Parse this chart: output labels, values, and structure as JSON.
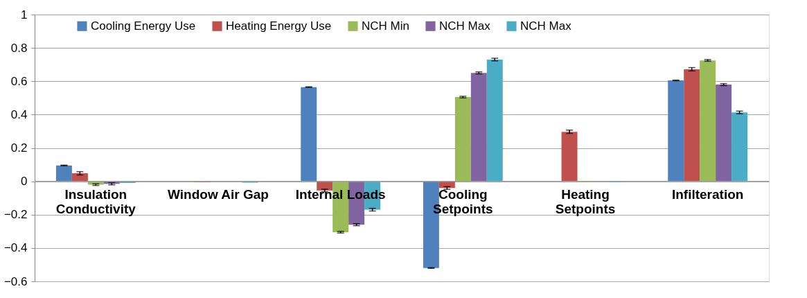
{
  "chart_data": {
    "type": "bar",
    "categories": [
      "Insulation Conductivity",
      "Window Air Gap",
      "Internal Loads",
      "Cooling Setpoints",
      "Heating Setpoints",
      "Infilteration"
    ],
    "series": [
      {
        "name": "Cooling Energy Use",
        "color": "#4f81bd",
        "values": [
          0.095,
          0.0,
          0.565,
          -0.52,
          0.0,
          0.605
        ],
        "errors": [
          0.002,
          null,
          0.002,
          0.002,
          null,
          0.002
        ]
      },
      {
        "name": "Heating Energy Use",
        "color": "#c0504d",
        "values": [
          0.048,
          -0.005,
          -0.055,
          -0.04,
          0.297,
          0.672
        ],
        "errors": [
          0.01,
          null,
          0.008,
          0.008,
          0.01,
          0.01
        ]
      },
      {
        "name": "NCH Min",
        "color": "#9bbb59",
        "values": [
          -0.02,
          null,
          -0.305,
          0.505,
          -0.005,
          0.725
        ],
        "errors": [
          0.005,
          null,
          0.005,
          0.005,
          null,
          0.005
        ]
      },
      {
        "name": "NCH Max",
        "color": "#8064a2",
        "values": [
          -0.015,
          null,
          -0.26,
          0.65,
          null,
          0.58
        ],
        "errors": [
          0.006,
          null,
          0.006,
          0.006,
          null,
          0.006
        ]
      },
      {
        "name": "NCH Max",
        "color": "#4bacc6",
        "values": [
          -0.01,
          -0.008,
          -0.17,
          0.73,
          -0.005,
          0.413
        ],
        "errors": [
          null,
          null,
          0.008,
          0.008,
          null,
          0.008
        ]
      }
    ],
    "ylim": [
      -0.6,
      1
    ],
    "yticks": [
      -0.6,
      -0.4,
      -0.2,
      0,
      0.2,
      0.4,
      0.6,
      0.8,
      1
    ],
    "grid": "y",
    "legend": "top"
  }
}
